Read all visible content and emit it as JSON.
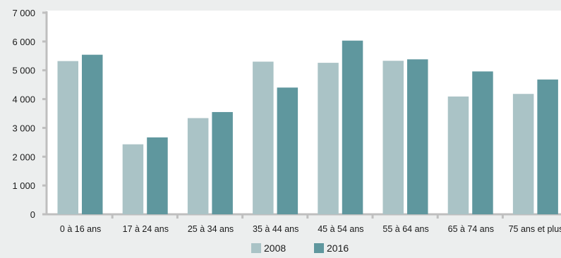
{
  "chart_data": {
    "type": "bar",
    "categories": [
      "0 à 16 ans",
      "17 à 24 ans",
      "25 à 34 ans",
      "35 à 44 ans",
      "45 à 54 ans",
      "55 à 64 ans",
      "65 à 74 ans",
      "75 ans et plus"
    ],
    "series": [
      {
        "name": "2008",
        "color": "#aac3c6",
        "values": [
          5320,
          2430,
          3340,
          5300,
          5260,
          5330,
          4090,
          4180
        ]
      },
      {
        "name": "2016",
        "color": "#5f979e",
        "values": [
          5540,
          2670,
          3550,
          4400,
          6030,
          5380,
          4960,
          4680
        ]
      }
    ],
    "yticks": [
      "0",
      "1 000",
      "2 000",
      "3 000",
      "4 000",
      "5 000",
      "6 000",
      "7 000"
    ],
    "ylim": [
      0,
      7000
    ],
    "grid": false,
    "legend_position": "bottom-center",
    "axis_color": "#bfbfbf",
    "plot_background": "#ffffff",
    "page_background": "#eceeee"
  }
}
